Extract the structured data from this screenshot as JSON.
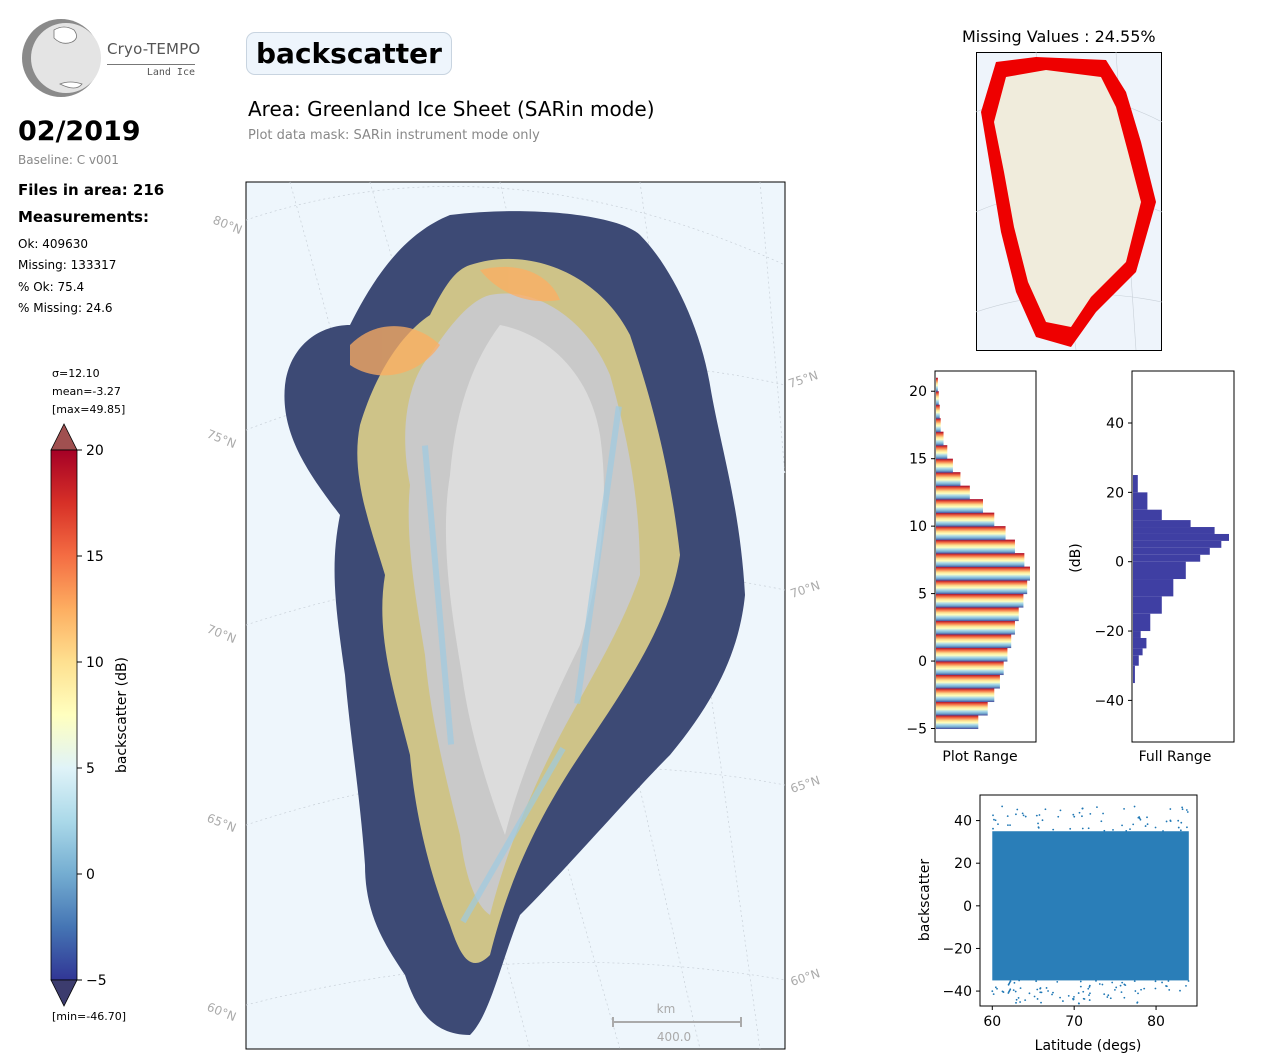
{
  "logo": {
    "title": "Cryo-TEMPO",
    "subtitle": "Land Ice"
  },
  "header": {
    "month": "02/2019",
    "baseline": "Baseline: C v001",
    "files": "Files in area: 216",
    "measurements": "Measurements:"
  },
  "stats": {
    "ok": "Ok: 409630",
    "missing": "Missing: 133317",
    "pct_ok": "% Ok: 75.4",
    "pct_missing": "% Missing: 24.6"
  },
  "param": "backscatter",
  "area_title": "Area: Greenland Ice Sheet (SARin mode)",
  "mask_note": "Plot data mask: SARin instrument mode only",
  "missing_title": "Missing Values : 24.55%",
  "colorbar": {
    "sigma": "σ=12.10",
    "mean": "mean=-3.27",
    "max": "[max=49.85]",
    "min": "[min=-46.70]",
    "label": "backscatter (dB)",
    "ticks": [
      "20",
      "15",
      "10",
      "5",
      "0",
      "−5"
    ],
    "colors": [
      "#a50026",
      "#d73027",
      "#f46d43",
      "#fdae61",
      "#fee090",
      "#ffffbf",
      "#e0f3f8",
      "#abd9e9",
      "#74add1",
      "#4575b4",
      "#313695"
    ]
  },
  "map": {
    "lat_labels_left": [
      "80°N",
      "75°N",
      "70°N",
      "65°N",
      "60°N"
    ],
    "lat_labels_right": [
      "75°N",
      "70°N",
      "65°N",
      "60°N"
    ],
    "scale_unit": "km",
    "scale_value": "400.0"
  },
  "hist_plot": {
    "xlabel": "Plot Range",
    "yticks": [
      "20",
      "15",
      "10",
      "5",
      "0",
      "−5"
    ]
  },
  "hist_full": {
    "xlabel": "Full Range",
    "ylabel": "(dB)",
    "yticks": [
      "40",
      "20",
      "0",
      "−20",
      "−40"
    ]
  },
  "scatter": {
    "xlabel": "Latitude (degs)",
    "ylabel": "backscatter",
    "yticks": [
      "40",
      "20",
      "0",
      "−20",
      "−40"
    ],
    "xticks": [
      "60",
      "70",
      "80"
    ]
  },
  "chart_data": [
    {
      "type": "bar",
      "title": "",
      "xlabel": "Plot Range",
      "ylim": [
        -6,
        21.5
      ],
      "note": "horizontal histogram of backscatter within plot range",
      "bins": [
        -5,
        -4,
        -3,
        -2,
        -1,
        0,
        1,
        2,
        3,
        4,
        5,
        6,
        7,
        8,
        9,
        10,
        11,
        12,
        13,
        14,
        15,
        16,
        17,
        18,
        19,
        20
      ],
      "counts": [
        0.45,
        0.55,
        0.62,
        0.68,
        0.72,
        0.76,
        0.8,
        0.84,
        0.88,
        0.93,
        0.97,
        1.0,
        0.94,
        0.84,
        0.74,
        0.62,
        0.5,
        0.36,
        0.26,
        0.18,
        0.12,
        0.08,
        0.05,
        0.04,
        0.03,
        0.02
      ]
    },
    {
      "type": "bar",
      "title": "",
      "xlabel": "Full Range",
      "ylabel": "(dB)",
      "ylim": [
        -52,
        55
      ],
      "bins": [
        -35,
        -30,
        -27,
        -25,
        -22,
        -20,
        -15,
        -10,
        -5,
        0,
        2,
        4,
        6,
        8,
        10,
        12,
        15,
        20,
        25
      ],
      "counts": [
        0.02,
        0.06,
        0.1,
        0.14,
        0.08,
        0.18,
        0.3,
        0.42,
        0.55,
        0.7,
        0.8,
        0.92,
        1.0,
        0.85,
        0.6,
        0.3,
        0.15,
        0.05,
        0.02
      ]
    },
    {
      "type": "scatter",
      "title": "",
      "xlabel": "Latitude (degs)",
      "ylabel": "backscatter",
      "xlim": [
        58.5,
        85
      ],
      "ylim": [
        -47,
        52
      ],
      "x_range": [
        60,
        84
      ],
      "y_band": [
        -35,
        35
      ],
      "y_extremes": [
        -46,
        47
      ]
    }
  ]
}
